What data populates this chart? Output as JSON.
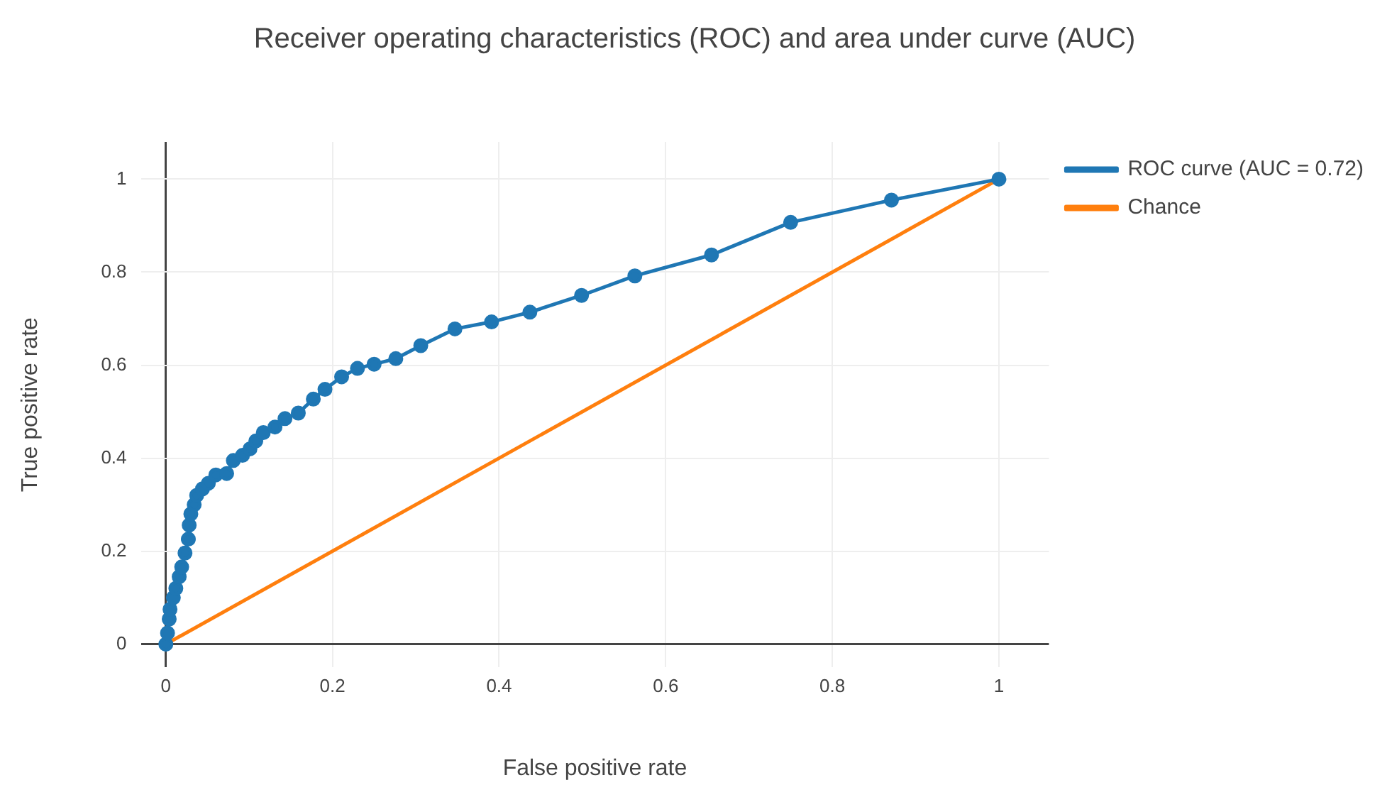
{
  "chart_data": {
    "type": "line",
    "title": "Receiver operating characteristics (ROC) and area under curve (AUC)",
    "xlabel": "False positive rate",
    "ylabel": "True positive rate",
    "xlim": [
      -0.03,
      1.06
    ],
    "ylim": [
      -0.05,
      1.08
    ],
    "xticks": [
      0,
      0.2,
      0.4,
      0.6,
      0.8,
      1
    ],
    "yticks": [
      0,
      0.2,
      0.4,
      0.6,
      0.8,
      1
    ],
    "grid": true,
    "legend": "top right",
    "series": [
      {
        "name": "ROC curve (AUC = 0.72)",
        "color": "#1f77b4",
        "marker": "circle",
        "x": [
          0,
          0.002,
          0.004,
          0.005,
          0.009,
          0.012,
          0.016,
          0.019,
          0.023,
          0.027,
          0.028,
          0.03,
          0.034,
          0.037,
          0.044,
          0.051,
          0.06,
          0.073,
          0.081,
          0.092,
          0.101,
          0.108,
          0.117,
          0.131,
          0.143,
          0.159,
          0.177,
          0.191,
          0.211,
          0.23,
          0.25,
          0.276,
          0.306,
          0.347,
          0.391,
          0.437,
          0.499,
          0.563,
          0.655,
          0.75,
          0.871,
          1
        ],
        "values": [
          0,
          0.024,
          0.054,
          0.075,
          0.1,
          0.12,
          0.145,
          0.166,
          0.196,
          0.226,
          0.256,
          0.28,
          0.3,
          0.32,
          0.334,
          0.346,
          0.364,
          0.367,
          0.395,
          0.406,
          0.42,
          0.437,
          0.455,
          0.467,
          0.485,
          0.497,
          0.527,
          0.548,
          0.575,
          0.593,
          0.602,
          0.614,
          0.642,
          0.678,
          0.693,
          0.714,
          0.75,
          0.792,
          0.837,
          0.907,
          0.955,
          1
        ]
      },
      {
        "name": "Chance",
        "color": "#ff7f0e",
        "marker": "none",
        "x": [
          0,
          1
        ],
        "values": [
          0,
          1
        ]
      }
    ]
  }
}
